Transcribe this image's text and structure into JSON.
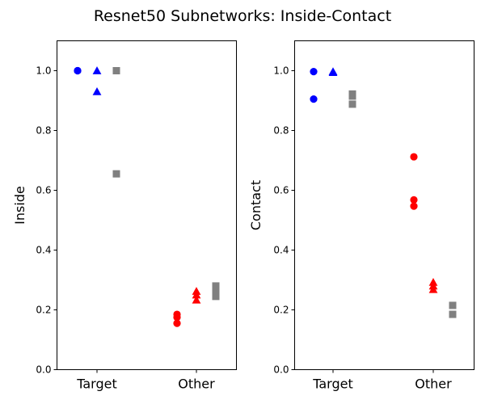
{
  "figure": {
    "title": "Resnet50 Subnetworks: Inside-Contact"
  },
  "chart_data": [
    {
      "type": "scatter",
      "ylabel": "Inside",
      "xlabel": "",
      "categories": [
        "Target",
        "Other"
      ],
      "ylim": [
        0.0,
        1.1
      ],
      "yticks": [
        "0.0",
        "0.2",
        "0.4",
        "0.6",
        "0.8",
        "1.0"
      ],
      "grid": false,
      "series": [
        {
          "group": 0,
          "marker": "circle",
          "color": "#0000ff",
          "category": "Target",
          "offset": -1,
          "values": [
            1.0,
            1.0
          ]
        },
        {
          "group": 1,
          "marker": "triangle",
          "color": "#0000ff",
          "category": "Target",
          "offset": 0,
          "values": [
            1.0,
            0.93
          ]
        },
        {
          "group": 2,
          "marker": "square",
          "color": "#808080",
          "category": "Target",
          "offset": 1,
          "values": [
            1.0,
            0.655
          ]
        },
        {
          "group": 3,
          "marker": "circle",
          "color": "#ff0000",
          "category": "Other",
          "offset": -1,
          "values": [
            0.185,
            0.175,
            0.155
          ]
        },
        {
          "group": 4,
          "marker": "triangle",
          "color": "#ff0000",
          "category": "Other",
          "offset": 0,
          "values": [
            0.262,
            0.25,
            0.233
          ]
        },
        {
          "group": 5,
          "marker": "square",
          "color": "#808080",
          "category": "Other",
          "offset": 1,
          "values": [
            0.28,
            0.265,
            0.245
          ]
        }
      ]
    },
    {
      "type": "scatter",
      "ylabel": "Contact",
      "xlabel": "",
      "categories": [
        "Target",
        "Other"
      ],
      "ylim": [
        0.0,
        1.1
      ],
      "yticks": [
        "0.0",
        "0.2",
        "0.4",
        "0.6",
        "0.8",
        "1.0"
      ],
      "grid": false,
      "series": [
        {
          "group": 0,
          "marker": "circle",
          "color": "#0000ff",
          "category": "Target",
          "offset": -1,
          "values": [
            0.997,
            0.905
          ]
        },
        {
          "group": 1,
          "marker": "triangle",
          "color": "#0000ff",
          "category": "Target",
          "offset": 0,
          "values": [
            0.997,
            0.994
          ]
        },
        {
          "group": 2,
          "marker": "square",
          "color": "#808080",
          "category": "Target",
          "offset": 1,
          "values": [
            0.922,
            0.915,
            0.888
          ]
        },
        {
          "group": 3,
          "marker": "circle",
          "color": "#ff0000",
          "category": "Other",
          "offset": -1,
          "values": [
            0.712,
            0.568,
            0.547
          ]
        },
        {
          "group": 4,
          "marker": "triangle",
          "color": "#ff0000",
          "category": "Other",
          "offset": 0,
          "values": [
            0.292,
            0.28,
            0.268
          ]
        },
        {
          "group": 5,
          "marker": "square",
          "color": "#808080",
          "category": "Other",
          "offset": 1,
          "values": [
            0.215,
            0.185
          ]
        }
      ]
    }
  ]
}
